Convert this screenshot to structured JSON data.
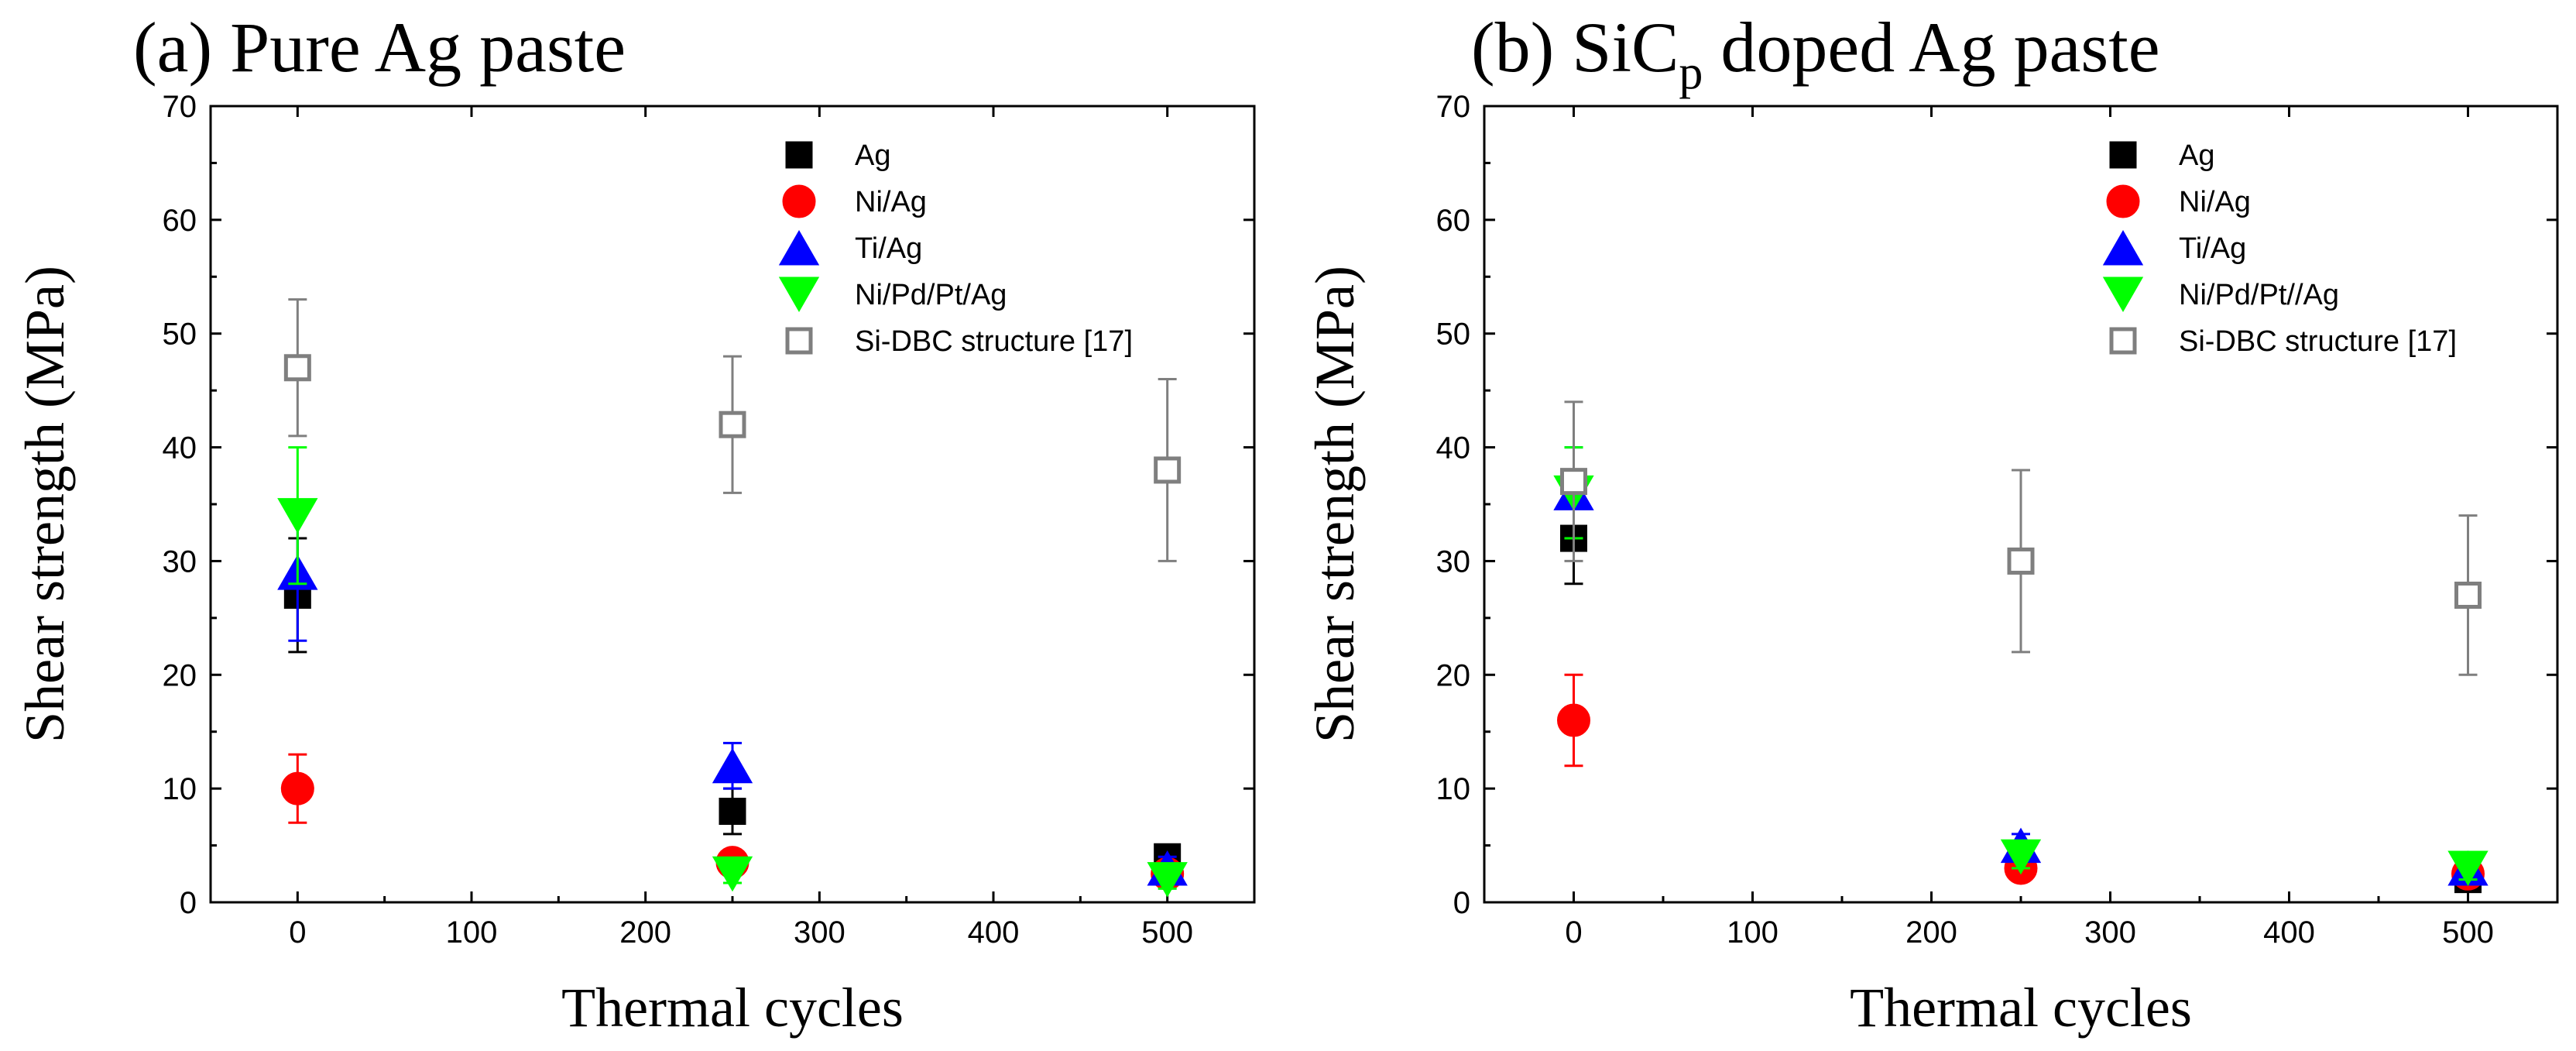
{
  "chart_data": [
    {
      "type": "scatter",
      "title_main": "(a) Pure Ag paste",
      "title_sub": "",
      "title_rest": "",
      "xlabel": "Thermal cycles",
      "ylabel": "Shear strength (MPa)",
      "xlim": [
        -50,
        550
      ],
      "ylim": [
        0,
        70
      ],
      "xticks": [
        0,
        100,
        200,
        300,
        400,
        500
      ],
      "yticks": [
        0,
        10,
        20,
        30,
        40,
        50,
        60,
        70
      ],
      "grid": false,
      "legend_position": "top-right",
      "series": [
        {
          "name": "Ag",
          "marker": "square",
          "color": "#000000",
          "filled": true,
          "points": [
            {
              "x": 0,
              "y": 27,
              "err": 5
            },
            {
              "x": 250,
              "y": 8,
              "err": 2
            },
            {
              "x": 500,
              "y": 4,
              "err": 1
            }
          ]
        },
        {
          "name": "Ni/Ag",
          "marker": "circle",
          "color": "#ff0000",
          "filled": true,
          "points": [
            {
              "x": 0,
              "y": 10,
              "err": 3
            },
            {
              "x": 250,
              "y": 3.5,
              "err": 1
            },
            {
              "x": 500,
              "y": 2.5,
              "err": 0.8
            }
          ]
        },
        {
          "name": "Ti/Ag",
          "marker": "triangle-up",
          "color": "#0000ff",
          "filled": true,
          "points": [
            {
              "x": 0,
              "y": 29,
              "err": 6
            },
            {
              "x": 250,
              "y": 12,
              "err": 2
            },
            {
              "x": 500,
              "y": 3,
              "err": 1
            }
          ]
        },
        {
          "name": "Ni/Pd/Pt/Ag",
          "marker": "triangle-down",
          "color": "#00ff00",
          "filled": true,
          "points": [
            {
              "x": 0,
              "y": 34,
              "err": 6
            },
            {
              "x": 250,
              "y": 2.5,
              "err": 0.8
            },
            {
              "x": 500,
              "y": 2,
              "err": 0.8
            }
          ]
        },
        {
          "name": "Si-DBC structure [17]",
          "marker": "square",
          "color": "#7f7f7f",
          "filled": false,
          "points": [
            {
              "x": 0,
              "y": 47,
              "err": 6
            },
            {
              "x": 250,
              "y": 42,
              "err": 6
            },
            {
              "x": 500,
              "y": 38,
              "err": 8
            }
          ]
        }
      ]
    },
    {
      "type": "scatter",
      "title_main": "(b) SiC",
      "title_sub": "p",
      "title_rest": " doped Ag paste",
      "xlabel": "Thermal cycles",
      "ylabel": "Shear strength (MPa)",
      "xlim": [
        -50,
        550
      ],
      "ylim": [
        0,
        70
      ],
      "xticks": [
        0,
        100,
        200,
        300,
        400,
        500
      ],
      "yticks": [
        0,
        10,
        20,
        30,
        40,
        50,
        60,
        70
      ],
      "grid": false,
      "legend_position": "top-right",
      "series": [
        {
          "name": "Ag",
          "marker": "square",
          "color": "#000000",
          "filled": true,
          "points": [
            {
              "x": 0,
              "y": 32,
              "err": 4
            },
            {
              "x": 250,
              "y": 4,
              "err": 1
            },
            {
              "x": 500,
              "y": 2,
              "err": 0.8
            }
          ]
        },
        {
          "name": "Ni/Ag",
          "marker": "circle",
          "color": "#ff0000",
          "filled": true,
          "points": [
            {
              "x": 0,
              "y": 16,
              "err": 4
            },
            {
              "x": 250,
              "y": 3,
              "err": 1
            },
            {
              "x": 500,
              "y": 2.5,
              "err": 0.8
            }
          ]
        },
        {
          "name": "Ti/Ag",
          "marker": "triangle-up",
          "color": "#0000ff",
          "filled": true,
          "points": [
            {
              "x": 0,
              "y": 36,
              "err": 4
            },
            {
              "x": 250,
              "y": 5,
              "err": 1
            },
            {
              "x": 500,
              "y": 3,
              "err": 1
            }
          ]
        },
        {
          "name": "Ni/Pd/Pt//Ag",
          "marker": "triangle-down",
          "color": "#00ff00",
          "filled": true,
          "points": [
            {
              "x": 0,
              "y": 36,
              "err": 4
            },
            {
              "x": 250,
              "y": 4,
              "err": 1
            },
            {
              "x": 500,
              "y": 3,
              "err": 1
            }
          ]
        },
        {
          "name": "Si-DBC structure [17]",
          "marker": "square",
          "color": "#7f7f7f",
          "filled": false,
          "points": [
            {
              "x": 0,
              "y": 37,
              "err": 7
            },
            {
              "x": 250,
              "y": 30,
              "err": 8
            },
            {
              "x": 500,
              "y": 27,
              "err": 7
            }
          ]
        }
      ]
    }
  ]
}
